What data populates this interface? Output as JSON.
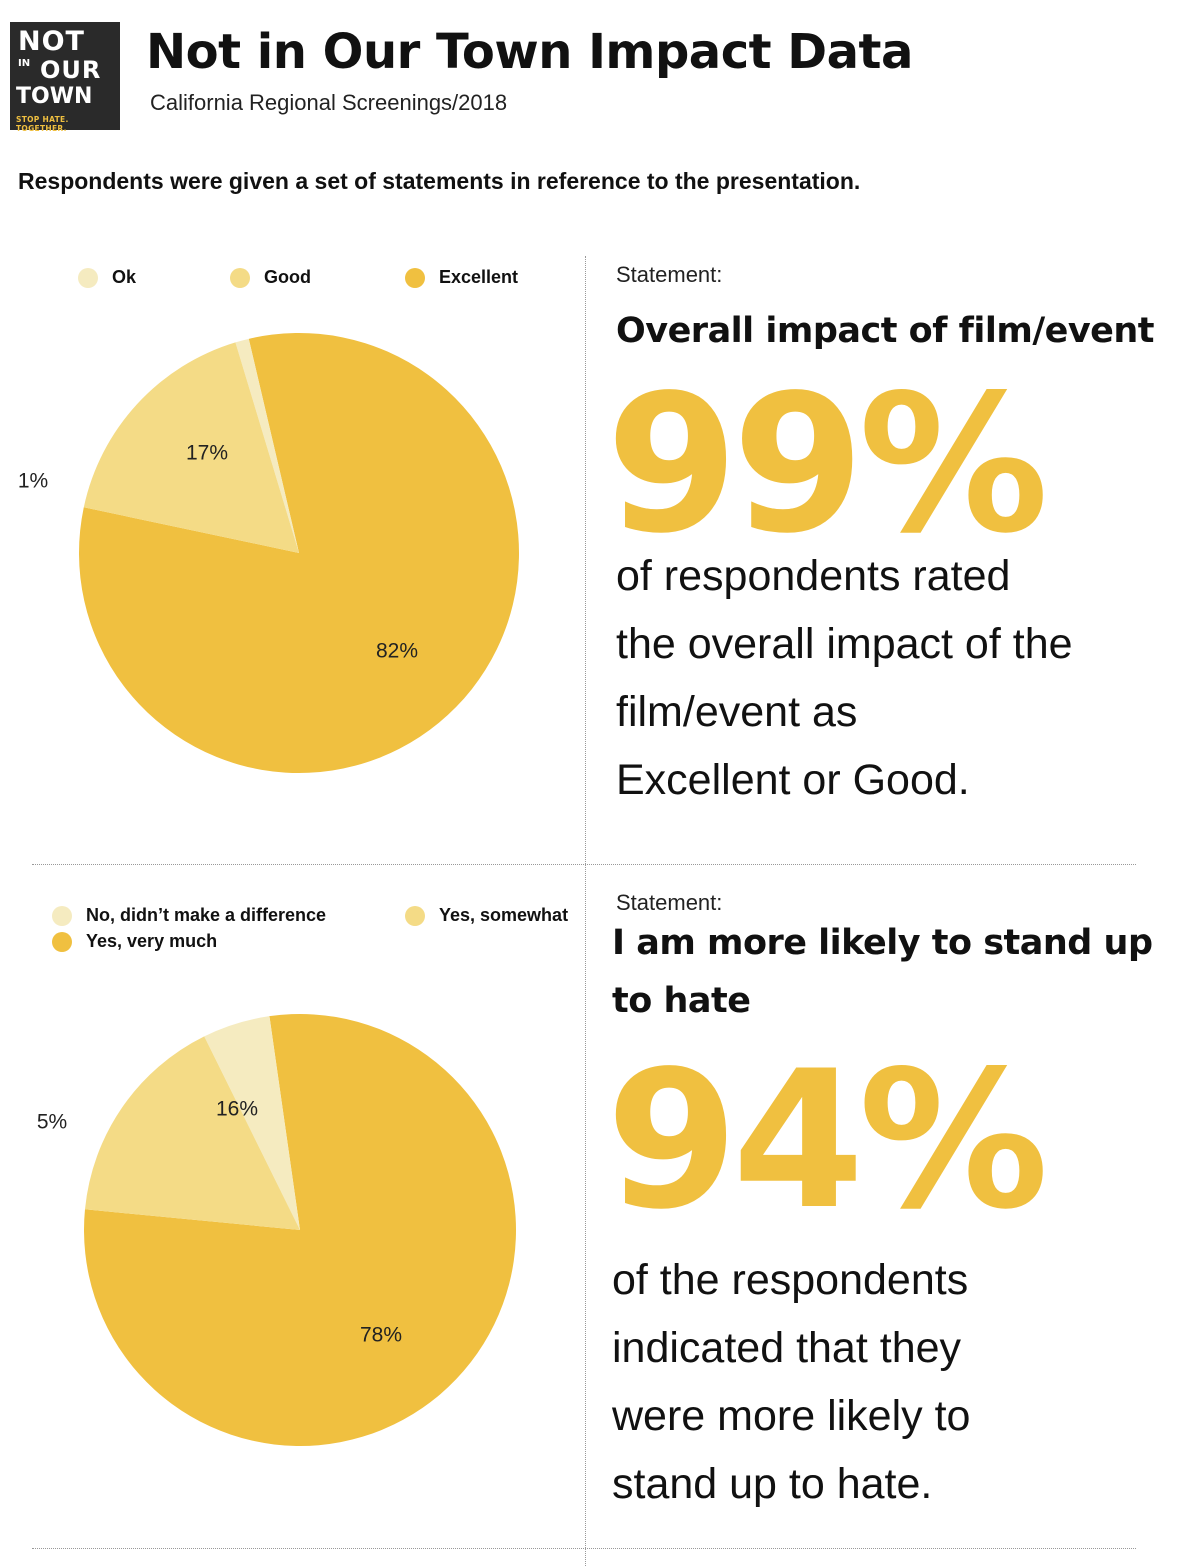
{
  "logo": {
    "line1": "NOT",
    "line2": "IN",
    "line3": "OUR",
    "line4": "TOWN",
    "tagline": "STOP HATE. TOGETHER."
  },
  "header": {
    "title": "Not in Our Town Impact Data",
    "subtitle": "California Regional Screenings/2018"
  },
  "intro": "Respondents were given a set of statements in reference to the presentation.",
  "colors": {
    "light": "#f5ebc0",
    "medium": "#f4db86",
    "dark": "#f0c040"
  },
  "chart_data": [
    {
      "type": "pie",
      "legend": [
        "Ok",
        "Good",
        "Excellent"
      ],
      "legend_placement": "top",
      "slices": [
        {
          "name": "Excellent",
          "value": 82,
          "label": "82%",
          "color": "#f0c040"
        },
        {
          "name": "Ok",
          "value": 1,
          "label": "1%",
          "color": "#f5ebc0"
        },
        {
          "name": "Good",
          "value": 17,
          "label": "17%",
          "color": "#f4db86"
        }
      ]
    },
    {
      "type": "pie",
      "legend": [
        "No, didn’t make a difference",
        "Yes, somewhat",
        "Yes, very much"
      ],
      "legend_placement": "top",
      "slices": [
        {
          "name": "Yes, very much",
          "value": 78,
          "label": "78%",
          "color": "#f0c040"
        },
        {
          "name": "No, didn’t make a difference",
          "value": 5,
          "label": "5%",
          "color": "#f5ebc0"
        },
        {
          "name": "Yes, somewhat",
          "value": 16,
          "label": "16%",
          "color": "#f4db86"
        }
      ]
    }
  ],
  "statements": [
    {
      "label": "Statement:",
      "title": "Overall impact of film/event",
      "percent": "99%",
      "description": [
        "of respondents rated",
        "the overall impact of the",
        "film/event as",
        "Excellent or Good."
      ]
    },
    {
      "label": "Statement:",
      "title": "I am more likely to stand up to hate",
      "percent": "94%",
      "description": [
        "of the respondents",
        "indicated that they",
        "were more likely to",
        "stand up to hate."
      ]
    }
  ]
}
